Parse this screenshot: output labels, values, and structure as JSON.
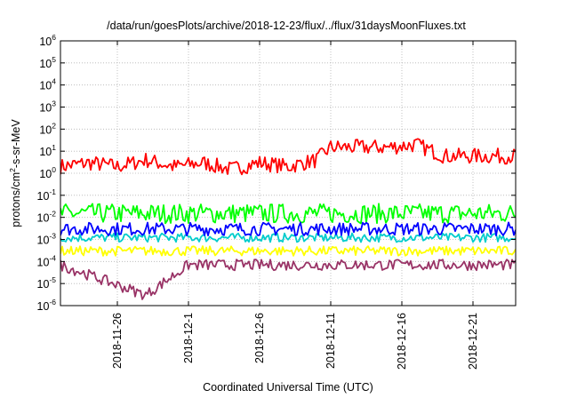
{
  "chart_data": {
    "type": "line",
    "title": "/data/run/goesPlots/archive/2018-12-23/flux/../flux/31daysMoonFluxes.txt",
    "xlabel": "Coordinated Universal Time (UTC)",
    "ylabel_base": "protons/cm",
    "ylabel_sup": "2",
    "ylabel_rest": "-s-sr-MeV",
    "y_scale": "log",
    "ylim": [
      1e-06,
      1000000.0
    ],
    "xlim": [
      "2018-11-22",
      "2018-12-24"
    ],
    "grid": true,
    "x_ticks": [
      "2018-11-26",
      "2018-12-1",
      "2018-12-6",
      "2018-12-11",
      "2018-12-16",
      "2018-12-21"
    ],
    "y_ticks": [
      {
        "base": "10",
        "exp": "-6"
      },
      {
        "base": "10",
        "exp": "-5"
      },
      {
        "base": "10",
        "exp": "-4"
      },
      {
        "base": "10",
        "exp": "-3"
      },
      {
        "base": "10",
        "exp": "-2"
      },
      {
        "base": "10",
        "exp": "-1"
      },
      {
        "base": "10",
        "exp": "0"
      },
      {
        "base": "10",
        "exp": "1"
      },
      {
        "base": "10",
        "exp": "2"
      },
      {
        "base": "10",
        "exp": "3"
      },
      {
        "base": "10",
        "exp": "4"
      },
      {
        "base": "10",
        "exp": "5"
      },
      {
        "base": "10",
        "exp": "6"
      }
    ],
    "series": [
      {
        "color": "#ff0000",
        "x": [
          "2018-11-22",
          "2018-11-24",
          "2018-11-26",
          "2018-11-28",
          "2018-11-30",
          "2018-12-2",
          "2018-12-4",
          "2018-12-6",
          "2018-12-8",
          "2018-12-10",
          "2018-12-11",
          "2018-12-13",
          "2018-12-15",
          "2018-12-17",
          "2018-12-19",
          "2018-12-21",
          "2018-12-24"
        ],
        "y": [
          2,
          3,
          2,
          4,
          2,
          3,
          1.5,
          3,
          2,
          4,
          15,
          15,
          15,
          20,
          6,
          6,
          6
        ]
      },
      {
        "color": "#00ff00",
        "x": [
          "2018-11-22",
          "2018-12-1",
          "2018-12-11",
          "2018-12-21",
          "2018-12-24"
        ],
        "y": [
          0.015,
          0.015,
          0.015,
          0.015,
          0.015
        ]
      },
      {
        "color": "#00cccc",
        "x": [
          "2018-11-22",
          "2018-12-1",
          "2018-12-11",
          "2018-12-21",
          "2018-12-24"
        ],
        "y": [
          0.0012,
          0.0012,
          0.0012,
          0.0012,
          0.0012
        ]
      },
      {
        "color": "#0000ff",
        "x": [
          "2018-11-22",
          "2018-12-1",
          "2018-12-11",
          "2018-12-21",
          "2018-12-24"
        ],
        "y": [
          0.003,
          0.003,
          0.003,
          0.003,
          0.003
        ]
      },
      {
        "color": "#ffff00",
        "x": [
          "2018-11-22",
          "2018-12-1",
          "2018-12-11",
          "2018-12-21",
          "2018-12-24"
        ],
        "y": [
          0.0003,
          0.0003,
          0.0003,
          0.0003,
          0.0003
        ]
      },
      {
        "color": "#993366",
        "x": [
          "2018-11-22",
          "2018-11-28",
          "2018-12-1",
          "2018-12-11",
          "2018-12-21",
          "2018-12-24"
        ],
        "y": [
          7e-05,
          3e-06,
          7e-05,
          7e-05,
          7e-05,
          7e-05
        ]
      }
    ]
  }
}
